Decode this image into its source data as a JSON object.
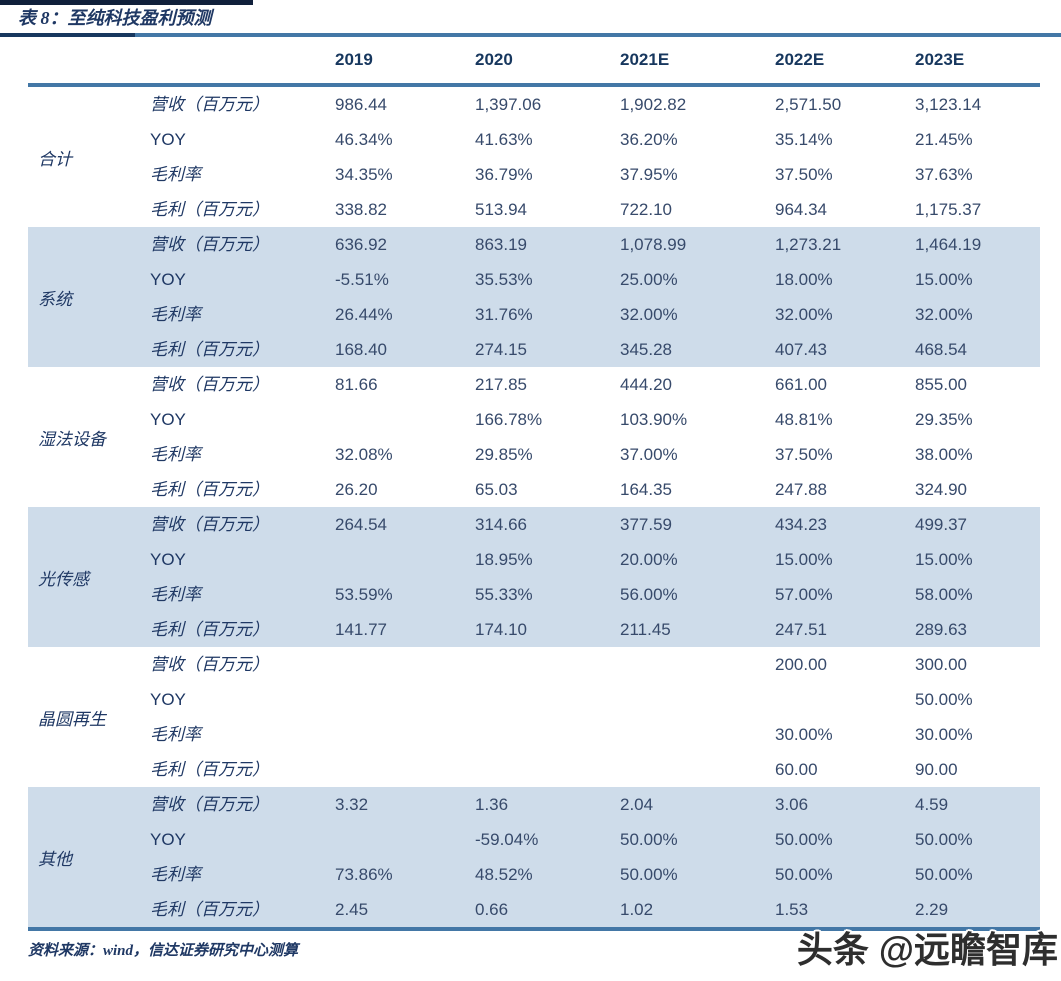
{
  "page": {
    "title": "表 8：至纯科技盈利预测"
  },
  "table": {
    "columns": [
      "2019",
      "2020",
      "2021E",
      "2022E",
      "2023E"
    ],
    "groups": [
      {
        "name": "合计",
        "rows": [
          {
            "label": "营收（百万元）",
            "values": [
              "986.44",
              "1,397.06",
              "1,902.82",
              "2,571.50",
              "3,123.14"
            ]
          },
          {
            "label": "YOY",
            "values": [
              "46.34%",
              "41.63%",
              "36.20%",
              "35.14%",
              "21.45%"
            ]
          },
          {
            "label": "毛利率",
            "values": [
              "34.35%",
              "36.79%",
              "37.95%",
              "37.50%",
              "37.63%"
            ]
          },
          {
            "label": "毛利（百万元）",
            "values": [
              "338.82",
              "513.94",
              "722.10",
              "964.34",
              "1,175.37"
            ]
          }
        ]
      },
      {
        "name": "系统",
        "rows": [
          {
            "label": "营收（百万元）",
            "values": [
              "636.92",
              "863.19",
              "1,078.99",
              "1,273.21",
              "1,464.19"
            ]
          },
          {
            "label": "YOY",
            "values": [
              "-5.51%",
              "35.53%",
              "25.00%",
              "18.00%",
              "15.00%"
            ]
          },
          {
            "label": "毛利率",
            "values": [
              "26.44%",
              "31.76%",
              "32.00%",
              "32.00%",
              "32.00%"
            ]
          },
          {
            "label": "毛利（百万元）",
            "values": [
              "168.40",
              "274.15",
              "345.28",
              "407.43",
              "468.54"
            ]
          }
        ]
      },
      {
        "name": "湿法设备",
        "rows": [
          {
            "label": "营收（百万元）",
            "values": [
              "81.66",
              "217.85",
              "444.20",
              "661.00",
              "855.00"
            ]
          },
          {
            "label": "YOY",
            "values": [
              "",
              "166.78%",
              "103.90%",
              "48.81%",
              "29.35%"
            ]
          },
          {
            "label": "毛利率",
            "values": [
              "32.08%",
              "29.85%",
              "37.00%",
              "37.50%",
              "38.00%"
            ]
          },
          {
            "label": "毛利（百万元）",
            "values": [
              "26.20",
              "65.03",
              "164.35",
              "247.88",
              "324.90"
            ]
          }
        ]
      },
      {
        "name": "光传感",
        "rows": [
          {
            "label": "营收（百万元）",
            "values": [
              "264.54",
              "314.66",
              "377.59",
              "434.23",
              "499.37"
            ]
          },
          {
            "label": "YOY",
            "values": [
              "",
              "18.95%",
              "20.00%",
              "15.00%",
              "15.00%"
            ]
          },
          {
            "label": "毛利率",
            "values": [
              "53.59%",
              "55.33%",
              "56.00%",
              "57.00%",
              "58.00%"
            ]
          },
          {
            "label": "毛利（百万元）",
            "values": [
              "141.77",
              "174.10",
              "211.45",
              "247.51",
              "289.63"
            ]
          }
        ]
      },
      {
        "name": "晶圆再生",
        "rows": [
          {
            "label": "营收（百万元）",
            "values": [
              "",
              "",
              "",
              "200.00",
              "300.00"
            ]
          },
          {
            "label": "YOY",
            "values": [
              "",
              "",
              "",
              "",
              "50.00%"
            ]
          },
          {
            "label": "毛利率",
            "values": [
              "",
              "",
              "",
              "30.00%",
              "30.00%"
            ]
          },
          {
            "label": "毛利（百万元）",
            "values": [
              "",
              "",
              "",
              "60.00",
              "90.00"
            ]
          }
        ]
      },
      {
        "name": "其他",
        "rows": [
          {
            "label": "营收（百万元）",
            "values": [
              "3.32",
              "1.36",
              "2.04",
              "3.06",
              "4.59"
            ]
          },
          {
            "label": "YOY",
            "values": [
              "",
              "-59.04%",
              "50.00%",
              "50.00%",
              "50.00%"
            ]
          },
          {
            "label": "毛利率",
            "values": [
              "73.86%",
              "48.52%",
              "50.00%",
              "50.00%",
              "50.00%"
            ]
          },
          {
            "label": "毛利（百万元）",
            "values": [
              "2.45",
              "0.66",
              "1.02",
              "1.53",
              "2.29"
            ]
          }
        ]
      }
    ]
  },
  "footer": {
    "source": "资料来源：wind，信达证券研究中心测算"
  },
  "watermark": {
    "text": "头条 @远瞻智库"
  },
  "colors": {
    "accent_navy": "#17375E",
    "band_blue": "#CEDCEA",
    "rule_blue": "#4377A6",
    "text_navy": "#1F3864",
    "number_slate": "#374A6B",
    "watermark_gray": "#2E2E2E"
  }
}
